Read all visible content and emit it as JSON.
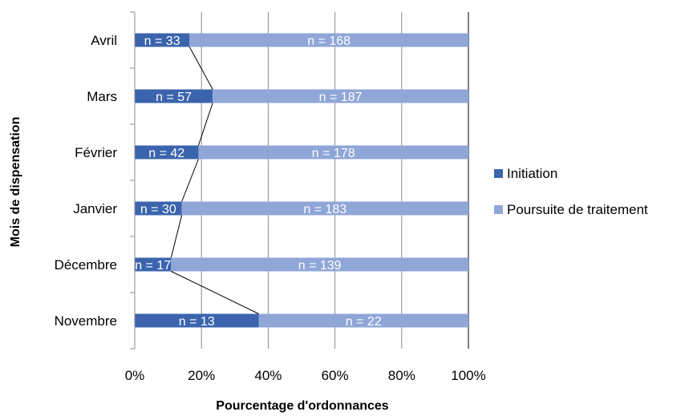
{
  "chart_data": {
    "type": "bar",
    "orientation": "horizontal",
    "stacked": "percent",
    "title": "",
    "xlabel": "Pourcentage d'ordonnances",
    "ylabel": "Mois de dispensation",
    "xlim": [
      0,
      100
    ],
    "x_ticks": [
      "0%",
      "20%",
      "40%",
      "60%",
      "80%",
      "100%"
    ],
    "grid": true,
    "legend_position": "right",
    "categories": [
      "Novembre",
      "Décembre",
      "Janvier",
      "Février",
      "Mars",
      "Avril"
    ],
    "series": [
      {
        "name": "Initiation",
        "color": "#3B64AD",
        "values": [
          13,
          17,
          30,
          42,
          57,
          33
        ],
        "labels": [
          "n = 13",
          "n = 17",
          "n = 30",
          "n = 42",
          "n = 57",
          "n = 33"
        ]
      },
      {
        "name": "Poursuite de traitement",
        "color": "#8FA6D7",
        "values": [
          22,
          139,
          183,
          178,
          187,
          168
        ],
        "labels": [
          "n = 22",
          "n = 139",
          "n = 183",
          "n = 178",
          "n = 187",
          "n = 168"
        ]
      }
    ],
    "series_line": "connects Initiation share across months"
  }
}
